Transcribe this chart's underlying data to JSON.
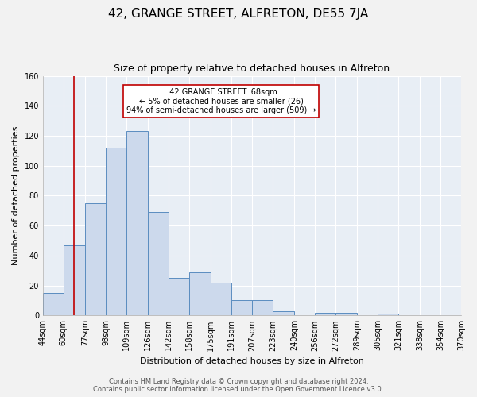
{
  "title": "42, GRANGE STREET, ALFRETON, DE55 7JA",
  "subtitle": "Size of property relative to detached houses in Alfreton",
  "xlabel": "Distribution of detached houses by size in Alfreton",
  "ylabel": "Number of detached properties",
  "bar_values": [
    15,
    47,
    75,
    112,
    123,
    69,
    25,
    29,
    22,
    10,
    10,
    3,
    0,
    2,
    2,
    0,
    1,
    0,
    0,
    0
  ],
  "bin_labels": [
    "44sqm",
    "60sqm",
    "77sqm",
    "93sqm",
    "109sqm",
    "126sqm",
    "142sqm",
    "158sqm",
    "175sqm",
    "191sqm",
    "207sqm",
    "223sqm",
    "240sqm",
    "256sqm",
    "272sqm",
    "289sqm",
    "305sqm",
    "321sqm",
    "338sqm",
    "354sqm",
    "370sqm"
  ],
  "bin_edges": [
    44,
    60,
    77,
    93,
    109,
    126,
    142,
    158,
    175,
    191,
    207,
    223,
    240,
    256,
    272,
    289,
    305,
    321,
    338,
    354,
    370
  ],
  "bar_color": "#ccd9ec",
  "bar_edge_color": "#5b8dc0",
  "property_size": 68,
  "property_line_color": "#c00000",
  "annotation_title": "42 GRANGE STREET: 68sqm",
  "annotation_line1": "← 5% of detached houses are smaller (26)",
  "annotation_line2": "94% of semi-detached houses are larger (509) →",
  "annotation_box_color": "#ffffff",
  "annotation_box_edge_color": "#c00000",
  "ylim": [
    0,
    160
  ],
  "yticks": [
    0,
    20,
    40,
    60,
    80,
    100,
    120,
    140,
    160
  ],
  "footer_line1": "Contains HM Land Registry data © Crown copyright and database right 2024.",
  "footer_line2": "Contains public sector information licensed under the Open Government Licence v3.0.",
  "bg_color": "#f2f2f2",
  "plot_bg_color": "#e8eef5",
  "grid_color": "#ffffff",
  "title_fontsize": 11,
  "subtitle_fontsize": 9,
  "axis_label_fontsize": 8,
  "tick_fontsize": 7,
  "footer_fontsize": 6,
  "annotation_fontsize": 7
}
